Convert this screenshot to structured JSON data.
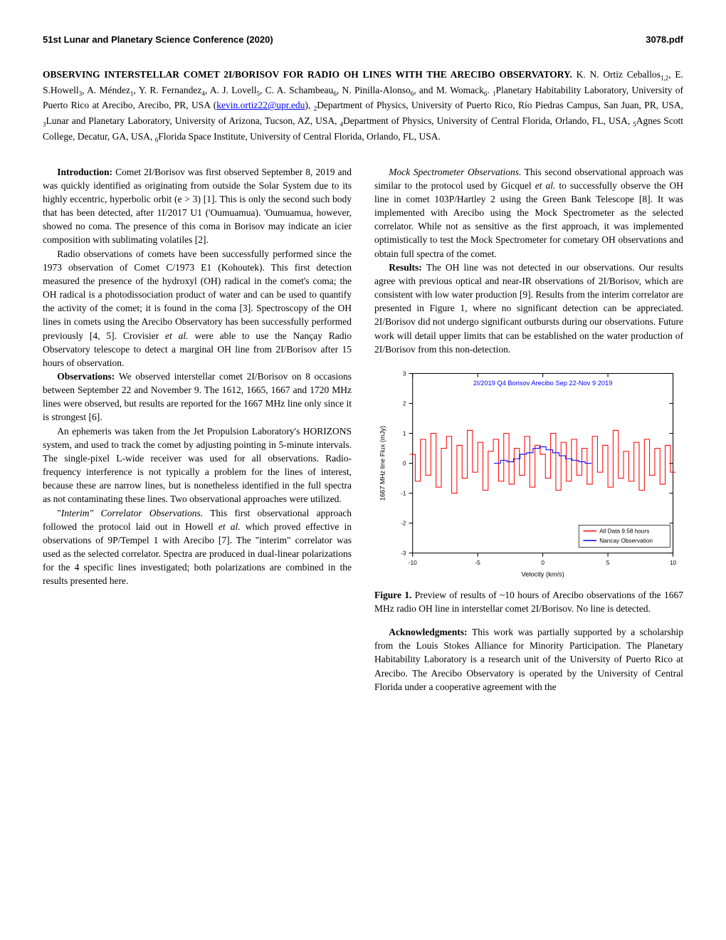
{
  "header": {
    "conf": "51st Lunar and Planetary Science Conference (2020)",
    "pdfnum": "3078.pdf"
  },
  "title": {
    "main": "OBSERVING INTERSTELLAR COMET 2I/BORISOV FOR RADIO OH LINES WITH THE ARECIBO OBSERVATORY.",
    "authors_pre": "  K. N. Ortiz Ceballos",
    "aff1": "1,2",
    "a2": ", E. S.Howell",
    "aff2": "3",
    "a3": ", A. Méndez",
    "aff3": "1",
    "a4": ", Y. R. Fernandez",
    "aff4": "4",
    "a5": ", A. J. Lovell",
    "aff5": "5",
    "a6": ", C. A. Schambeau",
    "aff6": "6",
    "a7": ", N. Pinilla-Alonso",
    "aff7": "6",
    "a8": ", and M. Womack",
    "aff8": "6",
    "aff_text_1": ". ",
    "n1": "1",
    "aff_text_1b": "Planetary Habitability Laboratory, University of Puerto Rico at Arecibo, Arecibo, PR, USA (",
    "email": "kevin.ortiz22@upr.edu",
    "aff_text_2a": "), ",
    "n2": "2",
    "aff_text_2": "Department of Physics, University of Puerto Rico, Río Piedras Campus, San Juan, PR, USA, ",
    "n3": "3",
    "aff_text_3": "Lunar and Planetary Laboratory, University of Arizona, Tucson, AZ, USA, ",
    "n4": "4",
    "aff_text_4": "Department of Physics, University of Central Florida, Orlando, FL, USA, ",
    "n5": "5",
    "aff_text_5": "Agnes Scott College, Decatur, GA, USA, ",
    "n6": "6",
    "aff_text_6": "Florida Space Institute, University of Central Florida, Orlando, FL, USA."
  },
  "left": {
    "intro_head": "Introduction: ",
    "intro_text": "Comet 2I/Borisov was first observed September 8, 2019 and was quickly identified as originating from outside the Solar System due to its highly eccentric, hyperbolic orbit (e > 3) [1]. This is only the second such body that has been detected, after 1I/2017 U1 ('Oumuamua). 'Oumuamua, however, showed no coma. The presence of this coma in Borisov may indicate an icier composition with sublimating volatiles [2].",
    "p2": "Radio observations of comets have been successfully performed since the 1973 observation of Comet C/1973 E1 (Kohoutek). This first detection measured the presence of the hydroxyl (OH) radical in the comet's coma; the OH radical is a photodissociation product of water and can be used to quantify the activity of the comet; it is found in the coma [3]. Spectroscopy of the OH lines in comets using the Arecibo Observatory has been successfully performed previously [4, 5]. Crovisier ",
    "p2_it": "et al.",
    "p2b": " were able to use the Nançay Radio Observatory telescope to detect a marginal OH line from 2I/Borisov after 15 hours of observation.",
    "obs_head": "Observations:  ",
    "obs_text": "We observed interstellar comet 2I/Borisov on 8 occasions between September 22 and November 9. The 1612, 1665, 1667 and 1720 MHz lines were observed, but results are reported for the 1667 MHz line only since it is strongest [6].",
    "p4": "An ephemeris was taken from the Jet Propulsion Laboratory's HORIZONS system, and used to track the comet by adjusting pointing in 5-minute intervals. The single-pixel L-wide receiver was used for all observations. Radio-frequency interference is not typically a problem for the lines of interest, because these are narrow lines, but is nonetheless identified in the full spectra as not contaminating these lines. Two observational approaches were utilized.",
    "p5_q": "\"",
    "p5_it": "Interim\" Correlator Observations.",
    "p5": " This first observational approach followed the protocol laid out in Howell ",
    "p5_it2": "et al.",
    "p5b": " which proved effective in observations of 9P/Tempel 1 with Arecibo [7]. The \"interim\" correlator was used as the selected correlator. Spectra are produced in dual-linear polarizations for the 4 specific lines investigated; both polarizations are combined in the results presented here."
  },
  "right": {
    "p1_it": "Mock Spectrometer Observations.",
    "p1": " This second observational approach was similar to the protocol used by Gicquel ",
    "p1_it2": "et al.",
    "p1b": " to successfully observe the OH line in comet 103P/Hartley 2 using the Green Bank Telescope [8]. It was implemented with Arecibo using the Mock Spectrometer as the selected correlator. While not as sensitive as the first approach, it was implemented optimistically to test the Mock Spectrometer for cometary OH observations and obtain full spectra of the comet.",
    "res_head": "Results: ",
    "res_text": "The OH line was not detected in our observations. Our results agree with previous optical and near-IR observations of 2I/Borisov, which are consistent with low water production [9]. Results from the interim correlator are presented in Figure 1, where no significant detection can be appreciated. 2I/Borisov did not undergo significant outbursts during our observations. Future work will detail upper limits that can be established on the water production of 2I/Borisov from this non-detection.",
    "fig_label": "Figure 1.",
    "fig_text": " Preview of results of ~10 hours of Arecibo observations of the 1667 MHz radio OH line in interstellar comet 2I/Borisov. No line is detected.",
    "ack_head": "Acknowledgments: ",
    "ack_text": "This work was partially supported by a scholarship from the Louis Stokes Alliance for Minority Participation. The Planetary Habitability Laboratory is a research unit of the University of Puerto Rico at Arecibo. The Arecibo Observatory is operated by the University of Central Florida under a cooperative agreement with the"
  },
  "chart": {
    "type": "line",
    "title": "2I/2019 Q4 Borisov Arecibo Sep 22-Nov 9 2019",
    "title_color": "#0000ff",
    "title_fontsize": 9,
    "xlabel": "Velocity (km/s)",
    "ylabel": "1667 MHz line Flux (mJy)",
    "label_fontsize": 9,
    "xlim": [
      -10,
      10
    ],
    "ylim": [
      -3,
      3
    ],
    "xticks": [
      -10,
      -5,
      0,
      5,
      10
    ],
    "yticks": [
      -3,
      -2,
      -1,
      0,
      1,
      2,
      3
    ],
    "tick_fontsize": 8,
    "grid": false,
    "background_color": "#ffffff",
    "axis_color": "#000000",
    "legend_items": [
      {
        "label": "All Data 9.58 hours",
        "color": "#ff0000"
      },
      {
        "label": "Nancay Observation",
        "color": "#0000ff"
      }
    ],
    "nancay": {
      "color": "#0000ff",
      "x": [
        -3.5,
        -3.0,
        -2.5,
        -2.0,
        -1.5,
        -1.0,
        -0.5,
        0.0,
        0.5,
        1.0,
        1.5,
        2.0,
        2.5,
        3.0,
        3.5
      ],
      "y": [
        0.0,
        0.1,
        0.05,
        0.15,
        0.3,
        0.35,
        0.5,
        0.55,
        0.45,
        0.35,
        0.25,
        0.15,
        0.1,
        0.05,
        0.0
      ]
    },
    "arecibo": {
      "color": "#ff0000",
      "stroke_width": 1,
      "x": [
        -10,
        -9.6,
        -9.2,
        -8.8,
        -8.4,
        -8,
        -7.6,
        -7.2,
        -6.8,
        -6.4,
        -6,
        -5.6,
        -5.2,
        -4.8,
        -4.4,
        -4,
        -3.6,
        -3.2,
        -2.8,
        -2.4,
        -2,
        -1.6,
        -1.2,
        -0.8,
        -0.4,
        0,
        0.4,
        0.8,
        1.2,
        1.6,
        2,
        2.4,
        2.8,
        3.2,
        3.6,
        4,
        4.4,
        4.8,
        5.2,
        5.6,
        6,
        6.4,
        6.8,
        7.2,
        7.6,
        8,
        8.4,
        8.8,
        9.2,
        9.6,
        10
      ],
      "y": [
        0.3,
        -0.6,
        0.8,
        -0.4,
        1.0,
        -0.8,
        0.5,
        0.9,
        -1.0,
        0.6,
        -0.5,
        1.1,
        -0.3,
        0.7,
        -0.9,
        0.4,
        0.8,
        -0.6,
        1.0,
        -0.7,
        0.5,
        -0.4,
        0.9,
        -0.8,
        0.6,
        0.3,
        -0.5,
        1.0,
        -0.9,
        0.7,
        -0.6,
        0.8,
        -0.4,
        0.5,
        -0.7,
        0.9,
        -0.3,
        0.6,
        -0.8,
        1.1,
        -0.5,
        0.4,
        -0.6,
        0.7,
        -0.9,
        0.8,
        -0.4,
        0.5,
        -0.7,
        0.6,
        -0.3
      ]
    }
  }
}
